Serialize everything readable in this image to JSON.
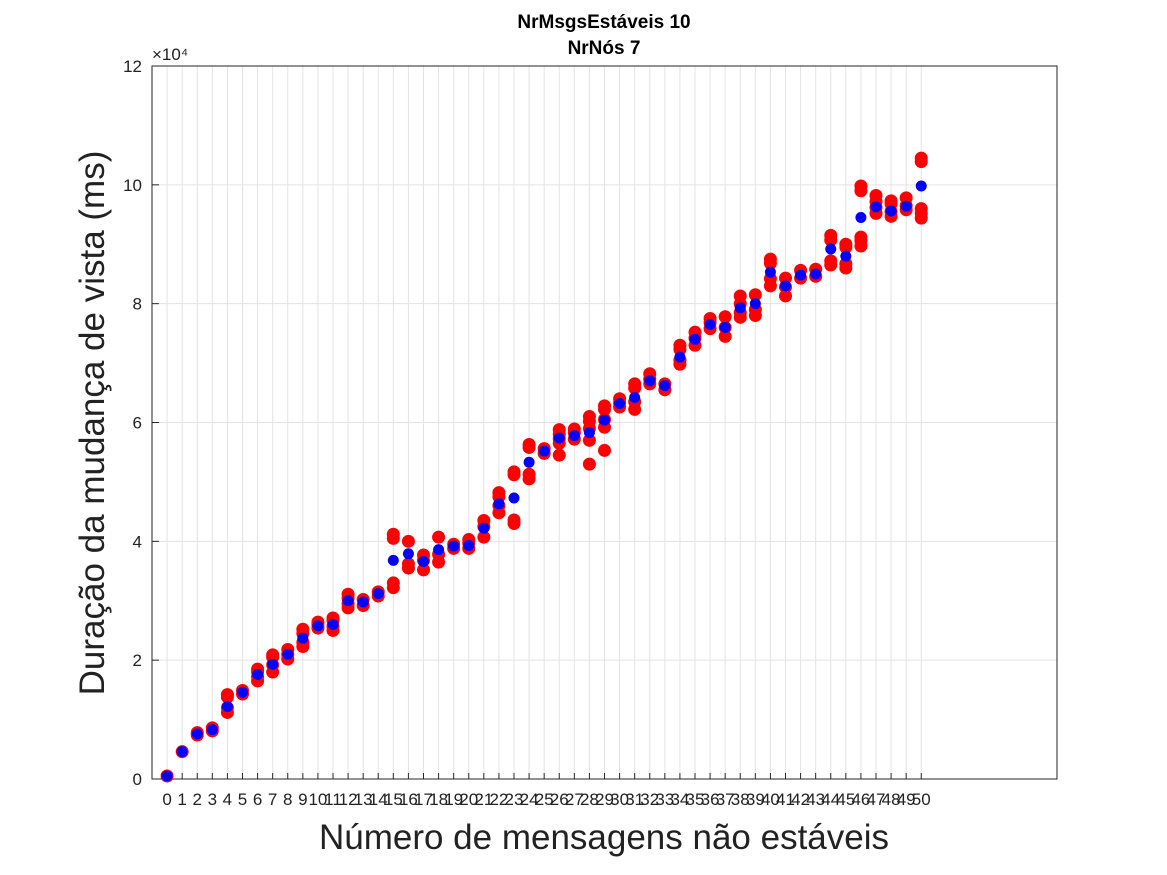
{
  "chart_data": {
    "type": "scatter",
    "title_lines": [
      "NrMsgsEstáveis 10",
      "NrNós 7"
    ],
    "xlabel": "Número de mensagens não estáveis",
    "ylabel": "Duração da mudança de vista (ms)",
    "y_exponent_label": "×10⁴",
    "xlim": [
      -1,
      59
    ],
    "ylim": [
      0,
      120000
    ],
    "x_ticks": [
      0,
      1,
      2,
      3,
      4,
      5,
      6,
      7,
      8,
      9,
      10,
      11,
      12,
      13,
      14,
      15,
      16,
      17,
      18,
      19,
      20,
      21,
      22,
      23,
      24,
      25,
      26,
      27,
      28,
      29,
      30,
      31,
      32,
      33,
      34,
      35,
      36,
      37,
      38,
      39,
      40,
      41,
      42,
      43,
      44,
      45,
      46,
      47,
      48,
      49,
      50
    ],
    "y_ticks": [
      0,
      20000,
      40000,
      60000,
      80000,
      100000,
      120000
    ],
    "y_tick_labels": [
      "0",
      "2",
      "4",
      "6",
      "8",
      "10",
      "12"
    ],
    "grid": true,
    "colors": {
      "individual": "#ff0000",
      "mean": "#0000ff"
    },
    "series": [
      {
        "marker": "individual",
        "points": [
          [
            0,
            500
          ],
          [
            1,
            4600
          ],
          [
            2,
            7400
          ],
          [
            2,
            7800
          ],
          [
            3,
            8100
          ],
          [
            3,
            8600
          ],
          [
            4,
            11200
          ],
          [
            4,
            12000
          ],
          [
            4,
            13800
          ],
          [
            4,
            14200
          ],
          [
            5,
            14300
          ],
          [
            5,
            14900
          ],
          [
            6,
            16500
          ],
          [
            6,
            17200
          ],
          [
            6,
            18000
          ],
          [
            6,
            18500
          ],
          [
            7,
            18000
          ],
          [
            7,
            19200
          ],
          [
            7,
            20500
          ],
          [
            7,
            20900
          ],
          [
            8,
            20200
          ],
          [
            8,
            21000
          ],
          [
            8,
            21800
          ],
          [
            9,
            22300
          ],
          [
            9,
            23000
          ],
          [
            9,
            24500
          ],
          [
            9,
            25200
          ],
          [
            10,
            25400
          ],
          [
            10,
            26000
          ],
          [
            10,
            26400
          ],
          [
            11,
            25000
          ],
          [
            11,
            25700
          ],
          [
            11,
            26700
          ],
          [
            11,
            27100
          ],
          [
            12,
            28800
          ],
          [
            12,
            29500
          ],
          [
            12,
            30400
          ],
          [
            12,
            31100
          ],
          [
            13,
            29200
          ],
          [
            13,
            30200
          ],
          [
            14,
            30800
          ],
          [
            14,
            31500
          ],
          [
            15,
            32200
          ],
          [
            15,
            33000
          ],
          [
            15,
            40500
          ],
          [
            15,
            41200
          ],
          [
            16,
            35500
          ],
          [
            16,
            36200
          ],
          [
            16,
            40000
          ],
          [
            17,
            35200
          ],
          [
            17,
            36800
          ],
          [
            17,
            37700
          ],
          [
            18,
            36500
          ],
          [
            18,
            37800
          ],
          [
            18,
            40700
          ],
          [
            19,
            38800
          ],
          [
            19,
            39500
          ],
          [
            20,
            38800
          ],
          [
            20,
            39700
          ],
          [
            20,
            40300
          ],
          [
            21,
            40700
          ],
          [
            21,
            42500
          ],
          [
            21,
            43500
          ],
          [
            22,
            44800
          ],
          [
            22,
            46000
          ],
          [
            22,
            47500
          ],
          [
            22,
            48200
          ],
          [
            23,
            43000
          ],
          [
            23,
            43600
          ],
          [
            23,
            51200
          ],
          [
            23,
            51700
          ],
          [
            24,
            50500
          ],
          [
            24,
            51300
          ],
          [
            24,
            55800
          ],
          [
            24,
            56300
          ],
          [
            25,
            54800
          ],
          [
            25,
            55600
          ],
          [
            26,
            54500
          ],
          [
            26,
            56500
          ],
          [
            26,
            57300
          ],
          [
            26,
            58000
          ],
          [
            26,
            58800
          ],
          [
            27,
            57200
          ],
          [
            27,
            58300
          ],
          [
            27,
            58900
          ],
          [
            28,
            53000
          ],
          [
            28,
            57000
          ],
          [
            28,
            59000
          ],
          [
            28,
            60200
          ],
          [
            28,
            61000
          ],
          [
            29,
            55300
          ],
          [
            29,
            59200
          ],
          [
            29,
            60500
          ],
          [
            29,
            62200
          ],
          [
            29,
            62800
          ],
          [
            30,
            62600
          ],
          [
            30,
            63300
          ],
          [
            30,
            64000
          ],
          [
            31,
            62200
          ],
          [
            31,
            63500
          ],
          [
            31,
            65800
          ],
          [
            31,
            66500
          ],
          [
            32,
            66500
          ],
          [
            32,
            67300
          ],
          [
            32,
            68200
          ],
          [
            33,
            65500
          ],
          [
            33,
            66500
          ],
          [
            34,
            69800
          ],
          [
            34,
            70500
          ],
          [
            34,
            72300
          ],
          [
            34,
            73000
          ],
          [
            35,
            73000
          ],
          [
            35,
            74200
          ],
          [
            35,
            75200
          ],
          [
            36,
            75800
          ],
          [
            36,
            76800
          ],
          [
            36,
            77500
          ],
          [
            37,
            74500
          ],
          [
            37,
            76000
          ],
          [
            37,
            77800
          ],
          [
            38,
            77700
          ],
          [
            38,
            78500
          ],
          [
            38,
            80000
          ],
          [
            38,
            81300
          ],
          [
            39,
            78000
          ],
          [
            39,
            79000
          ],
          [
            39,
            81500
          ],
          [
            40,
            83000
          ],
          [
            40,
            84200
          ],
          [
            40,
            86800
          ],
          [
            40,
            87500
          ],
          [
            41,
            81300
          ],
          [
            41,
            82800
          ],
          [
            41,
            84300
          ],
          [
            42,
            84300
          ],
          [
            42,
            85600
          ],
          [
            43,
            84600
          ],
          [
            43,
            85800
          ],
          [
            44,
            86500
          ],
          [
            44,
            87200
          ],
          [
            44,
            90700
          ],
          [
            44,
            91500
          ],
          [
            45,
            86000
          ],
          [
            45,
            86700
          ],
          [
            45,
            89500
          ],
          [
            45,
            90000
          ],
          [
            46,
            89700
          ],
          [
            46,
            90600
          ],
          [
            46,
            91200
          ],
          [
            46,
            99000
          ],
          [
            46,
            99800
          ],
          [
            47,
            95200
          ],
          [
            47,
            96200
          ],
          [
            47,
            97200
          ],
          [
            47,
            98200
          ],
          [
            48,
            94700
          ],
          [
            48,
            95500
          ],
          [
            48,
            96800
          ],
          [
            48,
            97300
          ],
          [
            49,
            95800
          ],
          [
            49,
            96500
          ],
          [
            49,
            97800
          ],
          [
            50,
            94400
          ],
          [
            50,
            95200
          ],
          [
            50,
            96000
          ],
          [
            50,
            103900
          ],
          [
            50,
            104500
          ]
        ]
      },
      {
        "marker": "mean",
        "points": [
          [
            0,
            500
          ],
          [
            1,
            4600
          ],
          [
            2,
            7600
          ],
          [
            3,
            8300
          ],
          [
            4,
            12200
          ],
          [
            5,
            14600
          ],
          [
            6,
            17600
          ],
          [
            7,
            19300
          ],
          [
            8,
            21000
          ],
          [
            9,
            23700
          ],
          [
            10,
            25800
          ],
          [
            11,
            26000
          ],
          [
            12,
            30000
          ],
          [
            13,
            29800
          ],
          [
            14,
            31200
          ],
          [
            15,
            36800
          ],
          [
            16,
            37900
          ],
          [
            17,
            36600
          ],
          [
            18,
            38600
          ],
          [
            19,
            39200
          ],
          [
            20,
            39300
          ],
          [
            21,
            42200
          ],
          [
            22,
            46300
          ],
          [
            23,
            47300
          ],
          [
            24,
            53300
          ],
          [
            25,
            55200
          ],
          [
            26,
            57400
          ],
          [
            27,
            57800
          ],
          [
            28,
            58300
          ],
          [
            29,
            60400
          ],
          [
            30,
            63200
          ],
          [
            31,
            64200
          ],
          [
            32,
            67000
          ],
          [
            33,
            66200
          ],
          [
            34,
            71000
          ],
          [
            35,
            74000
          ],
          [
            36,
            76500
          ],
          [
            37,
            76000
          ],
          [
            38,
            79300
          ],
          [
            39,
            80000
          ],
          [
            40,
            85300
          ],
          [
            41,
            83000
          ],
          [
            42,
            84800
          ],
          [
            43,
            85000
          ],
          [
            44,
            89200
          ],
          [
            45,
            88000
          ],
          [
            46,
            94500
          ],
          [
            47,
            96300
          ],
          [
            48,
            95600
          ],
          [
            49,
            96400
          ],
          [
            50,
            99800
          ]
        ]
      }
    ]
  }
}
